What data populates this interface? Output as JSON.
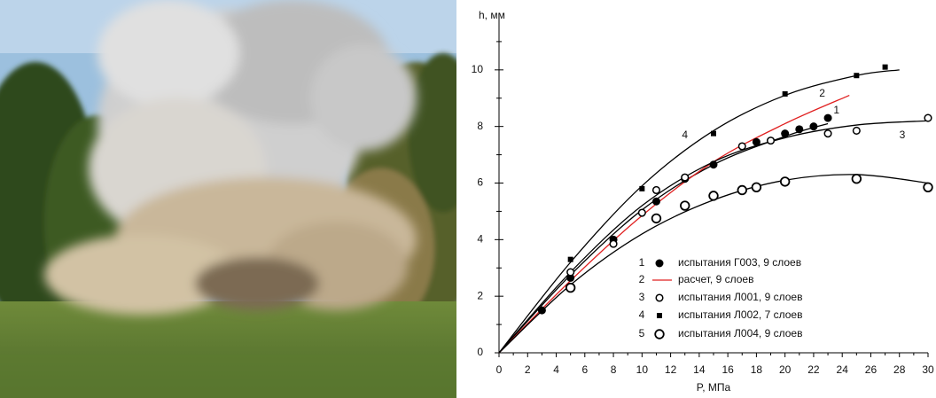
{
  "chart_data": {
    "type": "scatter",
    "x_label": "P, МПа",
    "y_label": "h, мм",
    "xlim": [
      0,
      30
    ],
    "ylim": [
      0,
      12
    ],
    "xticks": [
      0,
      2,
      4,
      6,
      8,
      10,
      12,
      14,
      16,
      18,
      20,
      22,
      24,
      26,
      28,
      30
    ],
    "yticks": [
      0,
      2,
      4,
      6,
      8,
      10
    ],
    "xminor": [
      1,
      3,
      5,
      7,
      9,
      11,
      13,
      15,
      17,
      19,
      21,
      23,
      25,
      27,
      29
    ],
    "yminor": [
      1,
      3,
      5,
      7,
      9,
      11
    ],
    "series": [
      {
        "number": "1",
        "name": "испытания Г003, 9 слоев",
        "marker": "filled-circle",
        "color": "#000000",
        "x": [
          3,
          5,
          8,
          11,
          13,
          15,
          18,
          20,
          21,
          22,
          23
        ],
        "values": [
          1.5,
          2.65,
          4.0,
          5.35,
          6.15,
          6.65,
          7.45,
          7.75,
          7.9,
          8.0,
          8.3
        ],
        "curve": {
          "color": "#000000",
          "x": [
            0,
            5,
            10,
            15,
            20,
            23
          ],
          "values": [
            0,
            2.75,
            5.05,
            6.65,
            7.65,
            8.1
          ]
        }
      },
      {
        "number": "2",
        "name": "расчет, 9 слоев",
        "marker": "line",
        "color": "#e02020",
        "x": [
          0,
          5,
          10,
          15,
          20,
          24.5
        ],
        "values": [
          0,
          2.55,
          4.85,
          6.75,
          8.1,
          9.1
        ]
      },
      {
        "number": "3",
        "name": "испытания Л001, 9 слоев",
        "marker": "open-circle",
        "color": "#000000",
        "x": [
          5,
          8,
          10,
          11,
          13,
          17,
          19,
          23,
          25,
          30
        ],
        "values": [
          2.85,
          3.85,
          4.95,
          5.75,
          6.2,
          7.3,
          7.5,
          7.75,
          7.85,
          8.3
        ],
        "curve": {
          "color": "#000000",
          "x": [
            0,
            5,
            10,
            15,
            20,
            25,
            30
          ],
          "values": [
            0,
            2.85,
            5.2,
            6.75,
            7.6,
            8.05,
            8.2
          ]
        }
      },
      {
        "number": "4",
        "name": "испытания Л002, 7 слоев",
        "marker": "square",
        "color": "#000000",
        "x": [
          5,
          10,
          15,
          20,
          25,
          27
        ],
        "values": [
          3.3,
          5.8,
          7.75,
          9.15,
          9.8,
          10.1
        ],
        "curve": {
          "color": "#000000",
          "x": [
            0,
            5,
            10,
            15,
            20,
            25,
            28
          ],
          "values": [
            0,
            3.2,
            5.9,
            7.85,
            9.1,
            9.8,
            10.0
          ]
        }
      },
      {
        "number": "5",
        "name": "испытания Л004, 9 слоев",
        "marker": "hex-circle",
        "color": "#000000",
        "x": [
          5,
          11,
          13,
          15,
          17,
          18,
          20,
          25,
          30
        ],
        "values": [
          2.3,
          4.75,
          5.2,
          5.55,
          5.75,
          5.85,
          6.05,
          6.15,
          5.85
        ],
        "curve": {
          "color": "#000000",
          "x": [
            0,
            5,
            10,
            15,
            20,
            25,
            30
          ],
          "values": [
            0,
            2.4,
            4.2,
            5.4,
            6.1,
            6.3,
            6.0
          ]
        }
      }
    ],
    "annotations": [
      "4",
      "2",
      "1",
      "3"
    ]
  }
}
